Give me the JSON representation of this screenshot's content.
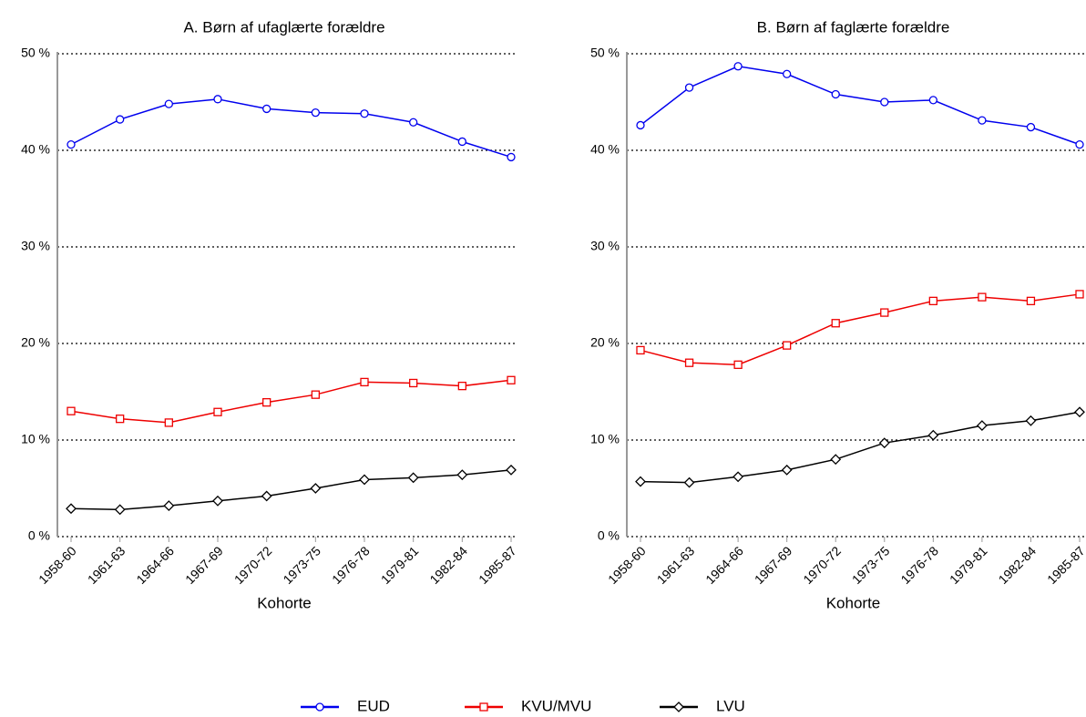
{
  "chart_data": [
    {
      "type": "line",
      "title": "A. Børn af ufaglærte forældre",
      "x_label": "Kohorte",
      "categories": [
        "1958-60",
        "1961-63",
        "1964-66",
        "1967-69",
        "1970-72",
        "1973-75",
        "1976-78",
        "1979-81",
        "1982-84",
        "1985-87"
      ],
      "ylim": [
        0,
        50
      ],
      "yticks": [
        {
          "value": 0,
          "label": "0 %"
        },
        {
          "value": 10,
          "label": "10 %"
        },
        {
          "value": 20,
          "label": "20 %"
        },
        {
          "value": 30,
          "label": "30 %"
        },
        {
          "value": 40,
          "label": "40 %"
        },
        {
          "value": 50,
          "label": "50 %"
        }
      ],
      "grid": true,
      "series": [
        {
          "name": "EUD",
          "color": "#0000ee",
          "marker": "circle",
          "values": [
            40.6,
            43.2,
            44.8,
            45.3,
            44.3,
            43.9,
            43.8,
            42.9,
            40.9,
            39.3
          ]
        },
        {
          "name": "KVU/MVU",
          "color": "#ee0000",
          "marker": "square",
          "values": [
            13.0,
            12.2,
            11.8,
            12.9,
            13.9,
            14.7,
            16.0,
            15.9,
            15.6,
            16.2
          ]
        },
        {
          "name": "LVU",
          "color": "#000000",
          "marker": "diamond",
          "values": [
            2.9,
            2.8,
            3.2,
            3.7,
            4.2,
            5.0,
            5.9,
            6.1,
            6.4,
            6.9
          ]
        }
      ]
    },
    {
      "type": "line",
      "title": "B. Børn af faglærte forældre",
      "x_label": "Kohorte",
      "categories": [
        "1958-60",
        "1961-63",
        "1964-66",
        "1967-69",
        "1970-72",
        "1973-75",
        "1976-78",
        "1979-81",
        "1982-84",
        "1985-87"
      ],
      "ylim": [
        0,
        50
      ],
      "yticks": [
        {
          "value": 0,
          "label": "0 %"
        },
        {
          "value": 10,
          "label": "10 %"
        },
        {
          "value": 20,
          "label": "20 %"
        },
        {
          "value": 30,
          "label": "30 %"
        },
        {
          "value": 40,
          "label": "40 %"
        },
        {
          "value": 50,
          "label": "50 %"
        }
      ],
      "grid": true,
      "series": [
        {
          "name": "EUD",
          "color": "#0000ee",
          "marker": "circle",
          "values": [
            42.6,
            46.5,
            48.7,
            47.9,
            45.8,
            45.0,
            45.2,
            43.1,
            42.4,
            40.6
          ]
        },
        {
          "name": "KVU/MVU",
          "color": "#ee0000",
          "marker": "square",
          "values": [
            19.3,
            18.0,
            17.8,
            19.8,
            22.1,
            23.2,
            24.4,
            24.8,
            24.4,
            25.1
          ]
        },
        {
          "name": "LVU",
          "color": "#000000",
          "marker": "diamond",
          "values": [
            5.7,
            5.6,
            6.2,
            6.9,
            8.0,
            9.7,
            10.5,
            11.5,
            12.0,
            12.9
          ]
        }
      ]
    }
  ]
}
